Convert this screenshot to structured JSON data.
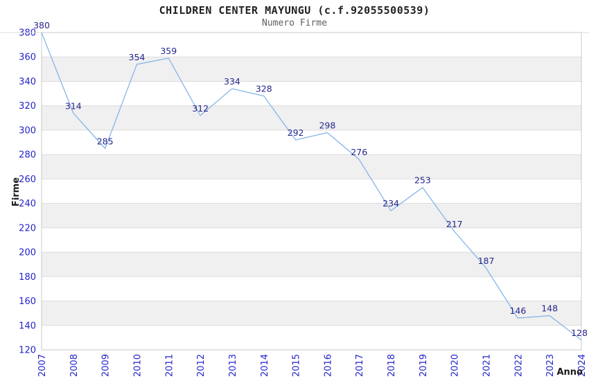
{
  "header": {
    "title": "CHILDREN CENTER MAYUNGU (c.f.92055500539)",
    "subtitle": "Numero Firme"
  },
  "chart_data": {
    "type": "line",
    "title": "CHILDREN CENTER MAYUNGU (c.f.92055500539)",
    "subtitle": "Numero Firme",
    "xlabel": "Anno",
    "ylabel": "Firme",
    "categories": [
      "2007",
      "2008",
      "2009",
      "2010",
      "2011",
      "2012",
      "2013",
      "2014",
      "2015",
      "2016",
      "2017",
      "2018",
      "2019",
      "2020",
      "2021",
      "2022",
      "2023",
      "2024"
    ],
    "series": [
      {
        "name": "Numero Firme",
        "values": [
          380,
          314,
          285,
          354,
          359,
          312,
          334,
          328,
          292,
          298,
          276,
          234,
          253,
          217,
          187,
          146,
          148,
          128
        ]
      }
    ],
    "ylim": [
      120,
      380
    ],
    "ytick_step": 20,
    "grid": "horizontal",
    "alternating_bands": true,
    "data_labels_visible": true,
    "legend_position": "none",
    "colors": {
      "line": "#86b5e8",
      "tick_label": "#2323cc",
      "data_label": "#26268c",
      "band_fill": "#f0f0f0",
      "grid_line": "#dcdcdc",
      "plot_border": "#c8c8c8",
      "title": "#222222",
      "subtitle": "#606060",
      "axis_title": "#1a1a1a"
    }
  }
}
